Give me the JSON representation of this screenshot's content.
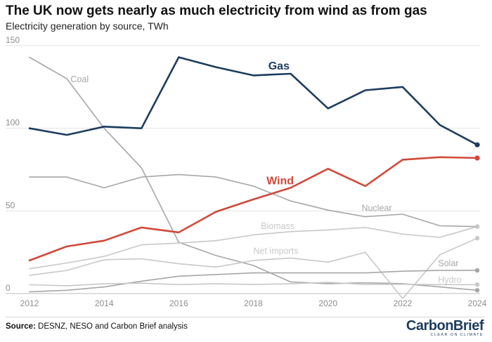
{
  "header": {
    "title": "The UK now gets nearly as much electricity from wind as from gas",
    "subtitle": "Electricity generation by source, TWh"
  },
  "footer": {
    "source_label": "Source:",
    "source_text": " DESNZ, NESO and Carbon Brief analysis",
    "logo_text": "CarbonBrief",
    "logo_tagline": "CLEAR ON CLIMATE"
  },
  "colors": {
    "gas": "#1d3c5e",
    "wind": "#d0493a",
    "grey_dark": "#8c8c8c",
    "grey_mid": "#a6a6a6",
    "grey_light": "#c8c8c8",
    "grid": "#e3e3e3",
    "axis_text": "#8c8c8c"
  },
  "chart_data": {
    "type": "line",
    "title": "The UK now gets nearly as much electricity from wind as from gas",
    "subtitle": "Electricity generation by source, TWh",
    "xlabel": "",
    "ylabel": "TWh",
    "xlim": [
      2012,
      2024
    ],
    "ylim": [
      0,
      150
    ],
    "x_ticks": [
      2012,
      2014,
      2016,
      2018,
      2020,
      2022,
      2024
    ],
    "y_ticks": [
      0,
      50,
      100,
      150
    ],
    "x": [
      2012,
      2013,
      2014,
      2015,
      2016,
      2017,
      2018,
      2019,
      2020,
      2021,
      2022,
      2023,
      2024
    ],
    "series": [
      {
        "name": "Gas",
        "color": "#1d3c5e",
        "width": 2.6,
        "label_weight": "bold",
        "label_size": 16,
        "values": [
          100,
          96,
          101,
          100,
          143,
          137,
          132,
          133,
          112,
          123,
          125,
          102,
          90
        ]
      },
      {
        "name": "Wind",
        "color": "#d0493a",
        "width": 2.6,
        "label_weight": "bold",
        "label_size": 16,
        "values": [
          20,
          28.5,
          32,
          40,
          37,
          49.5,
          57,
          64,
          75.5,
          65,
          81,
          82.5,
          82
        ]
      },
      {
        "name": "Coal",
        "color": "#a6a6a6",
        "width": 1.6,
        "label_weight": "normal",
        "label_size": 12.5,
        "values": [
          143,
          130,
          100,
          76,
          31,
          23,
          17,
          7,
          6,
          6.5,
          6,
          4,
          2
        ]
      },
      {
        "name": "Nuclear",
        "color": "#a6a6a6",
        "width": 1.6,
        "label_weight": "normal",
        "label_size": 12.5,
        "values": [
          70.5,
          70.5,
          64,
          70.5,
          72,
          70.5,
          65,
          56,
          50.5,
          46.5,
          48,
          41,
          40.5
        ]
      },
      {
        "name": "Biomass",
        "color": "#c8c8c8",
        "width": 1.6,
        "label_weight": "normal",
        "label_size": 12.5,
        "values": [
          15,
          18.5,
          22.5,
          29.5,
          30.5,
          32,
          35.5,
          37.5,
          38.5,
          40,
          36,
          34,
          40.5
        ]
      },
      {
        "name": "Net imports",
        "color": "#c8c8c8",
        "width": 1.6,
        "label_weight": "normal",
        "label_size": 12.5,
        "values": [
          11,
          14,
          20.5,
          21,
          18,
          16,
          20,
          21.5,
          19,
          25,
          -3,
          23.5,
          33.5
        ]
      },
      {
        "name": "Solar",
        "color": "#a6a6a6",
        "width": 1.6,
        "label_weight": "normal",
        "label_size": 12.5,
        "values": [
          1,
          2,
          4,
          7.5,
          10.5,
          11.5,
          12.5,
          12.5,
          12.5,
          12.5,
          13.5,
          14,
          14
        ]
      },
      {
        "name": "Hydro",
        "color": "#c8c8c8",
        "width": 1.6,
        "label_weight": "normal",
        "label_size": 12.5,
        "values": [
          5.3,
          4.7,
          5.9,
          6.3,
          5.4,
          5.9,
          5.5,
          5.9,
          6.8,
          5.5,
          5.6,
          5.4,
          5.4
        ]
      }
    ],
    "labels": [
      {
        "series": "Gas",
        "text": "Gas",
        "x": 2018.4,
        "y": 135.5
      },
      {
        "series": "Wind",
        "text": "Wind",
        "x": 2018.35,
        "y": 66
      },
      {
        "series": "Coal",
        "text": "Coal",
        "x": 2013.1,
        "y": 128
      },
      {
        "series": "Nuclear",
        "text": "Nuclear",
        "x": 2020.9,
        "y": 50
      },
      {
        "series": "Biomass",
        "text": "Biomass",
        "x": 2018.2,
        "y": 39
      },
      {
        "series": "Net imports",
        "text": "Net imports",
        "x": 2018.0,
        "y": 24
      },
      {
        "series": "Solar",
        "text": "Solar",
        "x": 2022.95,
        "y": 16.5
      },
      {
        "series": "Hydro",
        "text": "Hydro",
        "x": 2022.95,
        "y": 6.5
      }
    ]
  }
}
